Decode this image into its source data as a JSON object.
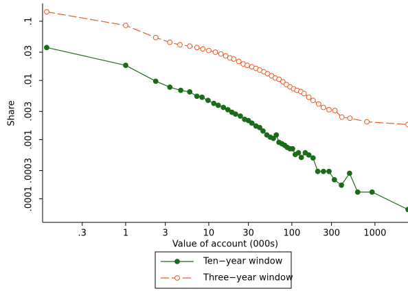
{
  "chart_data": {
    "type": "line",
    "log_x": true,
    "log_y": true,
    "xlabel": "Value of account (000s)",
    "ylabel": "Share",
    "xlim": [
      0.1,
      2500
    ],
    "ylim": [
      4e-05,
      0.2
    ],
    "xticks": [
      {
        "value": 0.3,
        "label": ".3"
      },
      1,
      3,
      10,
      30,
      100,
      300,
      1000
    ],
    "yticks": [
      {
        "value": 0.1,
        "label": ".1"
      },
      {
        "value": 0.03,
        "label": ".03"
      },
      {
        "value": 0.01,
        "label": ".01"
      },
      {
        "value": 0.003,
        "label": ".003"
      },
      {
        "value": 0.001,
        "label": ".001"
      },
      {
        "value": 0.0003,
        "label": ".0003"
      },
      {
        "value": 0.0001,
        "label": ".0001"
      }
    ],
    "legend": "bottom",
    "series": [
      {
        "name": "Ten−year window",
        "color": "#1a6b1a",
        "marker": "filled",
        "dashed": false,
        "x": [
          0.112,
          1,
          2.3,
          3.4,
          4.6,
          5.9,
          7.2,
          8.3,
          9.8,
          11.5,
          13,
          15,
          17,
          19,
          21,
          24,
          27,
          30,
          33,
          37,
          41,
          45,
          50,
          55,
          60,
          65,
          70,
          76,
          82,
          88,
          95,
          102,
          110,
          120,
          130,
          145,
          160,
          180,
          205,
          240,
          280,
          325,
          395,
          495,
          620,
          925,
          2500
        ],
        "values": [
          0.036,
          0.018,
          0.0097,
          0.0077,
          0.0068,
          0.0064,
          0.0054,
          0.0052,
          0.0046,
          0.0041,
          0.0038,
          0.0035,
          0.0032,
          0.0029,
          0.0027,
          0.0025,
          0.0022,
          0.0021,
          0.0019,
          0.0017,
          0.0016,
          0.0014,
          0.0012,
          0.0011,
          0.00105,
          0.0012,
          0.0009,
          0.00085,
          0.0008,
          0.00074,
          0.0007,
          0.0007,
          0.00056,
          0.0006,
          0.0005,
          0.0006,
          0.00055,
          0.00049,
          0.00029,
          0.00029,
          0.00029,
          0.00021,
          0.00017,
          0.00027,
          0.00013,
          0.00013,
          6.6e-05
        ]
      },
      {
        "name": "Three−year window",
        "color": "#e8582a",
        "marker": "hollow",
        "dashed": true,
        "x": [
          0.112,
          1,
          2.3,
          3.4,
          4.5,
          5.9,
          7.2,
          8.5,
          10,
          12,
          14,
          16,
          18,
          20,
          23,
          26,
          29,
          33,
          37,
          41,
          46,
          51,
          57,
          63,
          70,
          78,
          86,
          95,
          105,
          115,
          128,
          140,
          160,
          180,
          210,
          240,
          280,
          330,
          400,
          500,
          800,
          2500
        ],
        "values": [
          0.144,
          0.085,
          0.053,
          0.044,
          0.04,
          0.038,
          0.036,
          0.034,
          0.032,
          0.03,
          0.028,
          0.026,
          0.024,
          0.023,
          0.021,
          0.019,
          0.018,
          0.017,
          0.016,
          0.015,
          0.014,
          0.013,
          0.012,
          0.011,
          0.0105,
          0.0095,
          0.0085,
          0.0078,
          0.0072,
          0.0068,
          0.0065,
          0.006,
          0.0052,
          0.0046,
          0.004,
          0.0035,
          0.0032,
          0.0031,
          0.0024,
          0.0023,
          0.002,
          0.0018
        ]
      }
    ]
  }
}
